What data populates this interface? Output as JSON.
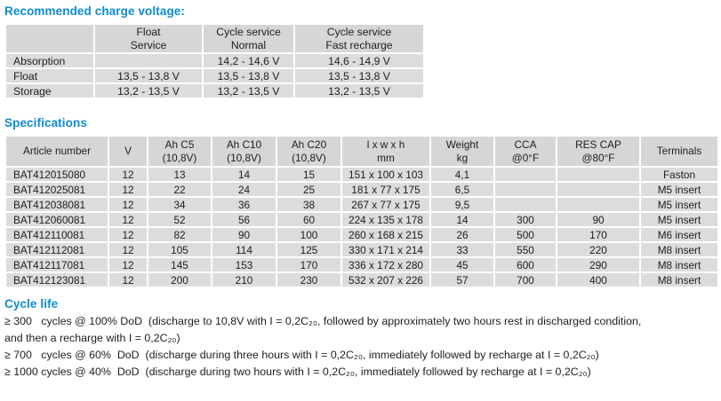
{
  "headings": {
    "charge": "Recommended charge voltage:",
    "specifications": "Specifications",
    "cycle_life": "Cycle life"
  },
  "charge_table": {
    "headers": [
      "",
      "Float\nService",
      "Cycle service\nNormal",
      "Cycle service\nFast recharge"
    ],
    "rows": [
      [
        "Absorption",
        "",
        "14,2 - 14,6 V",
        "14,6 - 14,9 V"
      ],
      [
        "Float",
        "13,5 - 13,8 V",
        "13,5 - 13,8 V",
        "13,5 - 13,8 V"
      ],
      [
        "Storage",
        "13,2 - 13,5 V",
        "13,2 - 13,5 V",
        "13,2 - 13,5 V"
      ]
    ]
  },
  "spec_table": {
    "headers": [
      "Article number",
      "V",
      "Ah C5\n(10,8V)",
      "Ah C10\n(10,8V)",
      "Ah C20\n(10,8V)",
      "l x w x h\nmm",
      "Weight\nkg",
      "CCA\n@0°F",
      "RES CAP\n@80°F",
      "Terminals"
    ],
    "rows": [
      [
        "BAT412015080",
        "12",
        "13",
        "14",
        "15",
        "151 x 100 x 103",
        "4,1",
        "",
        "",
        "Faston"
      ],
      [
        "BAT412025081",
        "12",
        "22",
        "24",
        "25",
        "181 x 77 x 175",
        "6,5",
        "",
        "",
        "M5 insert"
      ],
      [
        "BAT412038081",
        "12",
        "34",
        "36",
        "38",
        "267 x 77 x 175",
        "9,5",
        "",
        "",
        "M5 insert"
      ],
      [
        "BAT412060081",
        "12",
        "52",
        "56",
        "60",
        "224 x 135 x 178",
        "14",
        "300",
        "90",
        "M5 insert"
      ],
      [
        "BAT412110081",
        "12",
        "82",
        "90",
        "100",
        "260 x 168 x 215",
        "26",
        "500",
        "170",
        "M6 insert"
      ],
      [
        "BAT412112081",
        "12",
        "105",
        "114",
        "125",
        "330 x 171 x 214",
        "33",
        "550",
        "220",
        "M8 insert"
      ],
      [
        "BAT412117081",
        "12",
        "145",
        "153",
        "170",
        "336 x 172 x 280",
        "45",
        "600",
        "290",
        "M8 insert"
      ],
      [
        "BAT412123081",
        "12",
        "200",
        "210",
        "230",
        "532 x 207 x 226",
        "57",
        "700",
        "400",
        "M8 insert"
      ]
    ]
  },
  "cycle_life": {
    "lines": [
      "≥ 300   cycles @ 100% DoD  (discharge to 10,8V with I = 0,2C₂₀, followed by approximately two hours rest in discharged condition,",
      "and then a recharge with I = 0,2C₂₀)",
      "≥ 700   cycles @ 60%  DoD  (discharge during three hours with I = 0,2C₂₀, immediately followed by recharge at I = 0,2C₂₀)",
      "≥ 1000 cycles @ 40%  DoD  (discharge during two hours with I = 0,2C₂₀, immediately followed by recharge at I = 0,2C₂₀)"
    ]
  },
  "colors": {
    "heading_blue": "#0d8bd1",
    "cell_gray": "#dcdcdc",
    "header_gray": "#d6d6d6",
    "text_dark": "#1d1d1d"
  }
}
